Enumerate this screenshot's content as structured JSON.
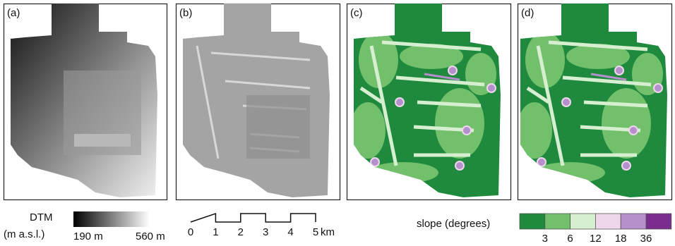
{
  "panels": [
    {
      "label": "(a)"
    },
    {
      "label": "(b)"
    },
    {
      "label": "(c)"
    },
    {
      "label": "(d)"
    }
  ],
  "dtm_legend": {
    "title": "DTM",
    "unit": "(m a.s.l.)",
    "min_label": "190 m",
    "max_label": "560 m"
  },
  "scale_bar": {
    "ticks": [
      0,
      1,
      2,
      3,
      4,
      5
    ],
    "unit": "km"
  },
  "slope_legend": {
    "title": "slope (degrees)",
    "colors": [
      "#1f8a3d",
      "#72c06c",
      "#d6efd0",
      "#efd8ec",
      "#b590cc",
      "#7b2c8f"
    ],
    "ticks": [
      3,
      6,
      12,
      18,
      36
    ]
  }
}
